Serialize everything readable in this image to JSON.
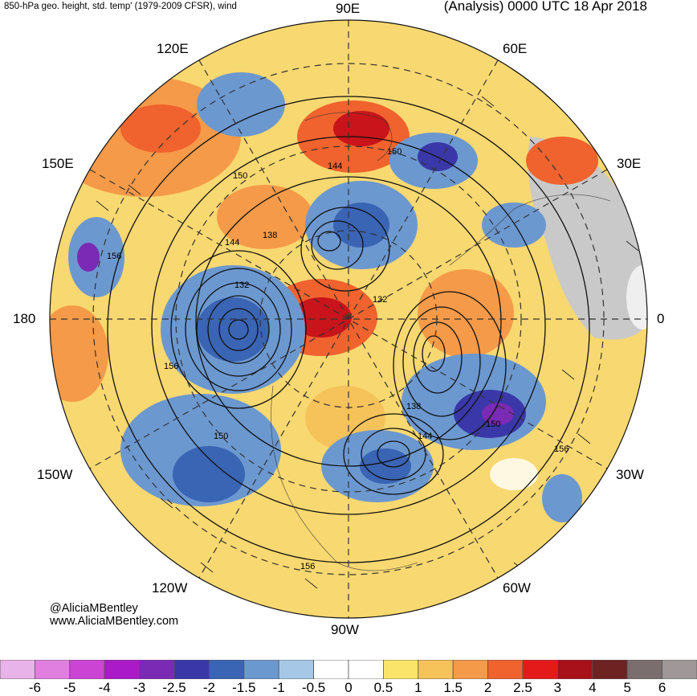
{
  "header": {
    "left_title": "850-hPa geo. height, std. temp' (1979-2009 CFSR), wind",
    "right_title": "(Analysis) 0000 UTC 18 Apr 2018"
  },
  "longitude_labels": [
    "90E",
    "60E",
    "120E",
    "150E",
    "30E",
    "180",
    "0",
    "150W",
    "30W",
    "120W",
    "60W",
    "90W"
  ],
  "contour_labels": [
    "150",
    "144",
    "150",
    "138",
    "144",
    "156",
    "132",
    "132",
    "156",
    "138",
    "150",
    "150",
    "144",
    "156",
    "156"
  ],
  "credits": {
    "handle": "@AliciaMBentley",
    "website": "www.AliciaMBentley.com"
  },
  "colorbar": {
    "ticks": [
      "-6",
      "-5",
      "-4",
      "-3",
      "-2.5",
      "-2",
      "-1.5",
      "-1",
      "-0.5",
      "0",
      "0.5",
      "1",
      "1.5",
      "2",
      "2.5",
      "3",
      "4",
      "5",
      "6"
    ],
    "colors": [
      "#e8b3e8",
      "#e07fe0",
      "#cc44d4",
      "#aa1ac8",
      "#7a2ab4",
      "#3a38a8",
      "#3a64b4",
      "#6c98d0",
      "#a6c8e6",
      "#ffffff",
      "#ffffff",
      "#fbe46a",
      "#f6c25a",
      "#f59a48",
      "#f0622e",
      "#e41a1a",
      "#a8101a",
      "#6e2222",
      "#7a6e6e",
      "#a09898"
    ]
  }
}
